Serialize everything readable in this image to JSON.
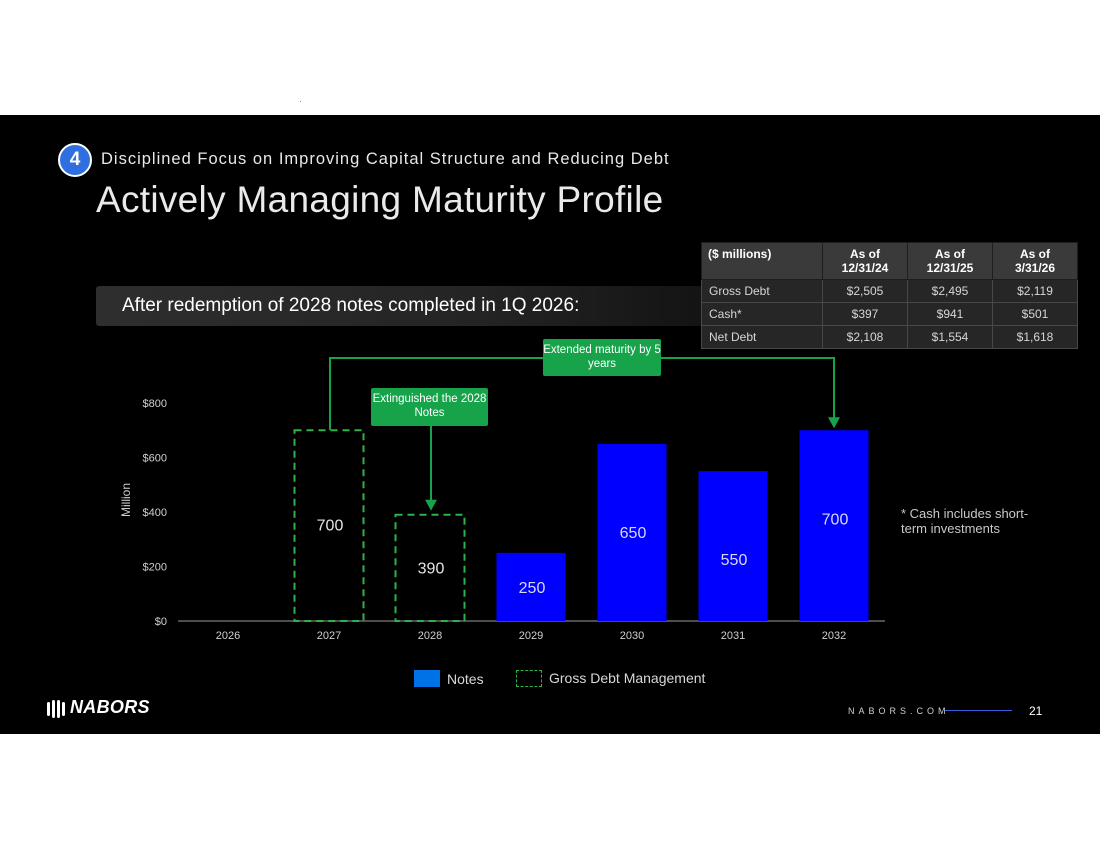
{
  "section": {
    "number": "4",
    "title": "Disciplined Focus on Improving Capital Structure and Reducing Debt"
  },
  "page_title": "Actively Managing Maturity Profile",
  "subtitle": "After redemption of 2028 notes completed in 1Q 2026:",
  "debt_table": {
    "headers": [
      "($ millions)",
      "As of 12/31/24",
      "As of 12/31/25",
      "As of 3/31/26"
    ],
    "rows": [
      [
        "Gross Debt",
        "$2,505",
        "$2,495",
        "$2,119"
      ],
      [
        "Cash*",
        "$397",
        "$941",
        "$501"
      ],
      [
        "Net Debt",
        "$2,108",
        "$1,554",
        "$1,618"
      ]
    ]
  },
  "callouts": {
    "extended": "Extended maturity by 5 years",
    "extinguished": "Extinguished the 2028 Notes"
  },
  "footnote": "* Cash includes short-term investments",
  "legend": {
    "notes": "Notes",
    "gross_debt_management": "Gross Debt Management"
  },
  "footer": {
    "logo": "NABORS",
    "site": "NABORS.COM",
    "page": "21"
  },
  "colors": {
    "notes": "#0000ff",
    "dashed": "#2db24a",
    "callout": "#16a34a",
    "badge": "#2f6fe0"
  },
  "chart_data": {
    "type": "bar",
    "title": "",
    "xlabel": "",
    "ylabel": "Million",
    "ylim": [
      0,
      800
    ],
    "yticks": [
      0,
      200,
      400,
      600,
      800
    ],
    "ytick_labels": [
      "$0",
      "$200",
      "$400",
      "$600",
      "$800"
    ],
    "categories": [
      "2026",
      "2027",
      "2028",
      "2029",
      "2030",
      "2031",
      "2032"
    ],
    "series": [
      {
        "name": "Notes",
        "style": "solid",
        "values": [
          null,
          null,
          null,
          250,
          650,
          550,
          700
        ]
      },
      {
        "name": "Gross Debt Management",
        "style": "dashed",
        "values": [
          null,
          700,
          390,
          null,
          null,
          null,
          null
        ]
      }
    ],
    "data_labels": [
      {
        "category": "2027",
        "label": "700"
      },
      {
        "category": "2028",
        "label": "390"
      },
      {
        "category": "2029",
        "label": "250"
      },
      {
        "category": "2030",
        "label": "650"
      },
      {
        "category": "2031",
        "label": "550"
      },
      {
        "category": "2032",
        "label": "700"
      }
    ],
    "grid": false,
    "legend": "bottom-center"
  }
}
